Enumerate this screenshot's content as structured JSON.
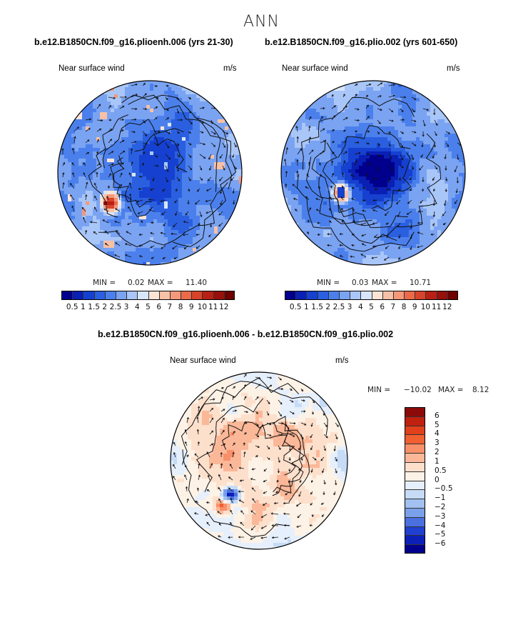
{
  "main_title": "ANN",
  "panels": [
    {
      "title": "b.e12.B1850CN.f09_g16.plioenh.006 (yrs 21-30)",
      "variable": "Near surface wind",
      "units": "m/s",
      "min_label": "MIN =",
      "min_value": "0.02",
      "max_label": "MAX =",
      "max_value": "11.40"
    },
    {
      "title": "b.e12.B1850CN.f09_g16.plio.002 (yrs 601-650)",
      "variable": "Near surface wind",
      "units": "m/s",
      "min_label": "MIN =",
      "min_value": "0.03",
      "max_label": "MAX =",
      "max_value": "10.71"
    }
  ],
  "diff_panel": {
    "title": "b.e12.B1850CN.f09_g16.plioenh.006 - b.e12.B1850CN.f09_g16.plio.002",
    "variable": "Near surface wind",
    "units": "m/s",
    "min_label": "MIN =",
    "min_value": "−10.02",
    "max_label": "MAX =",
    "max_value": "8.12"
  },
  "chart_data": [
    {
      "type": "heatmap",
      "projection": "north polar stereographic",
      "title": "b.e12.B1850CN.f09_g16.plioenh.006 (yrs 21-30)",
      "variable": "Near surface wind",
      "units": "m/s",
      "min": 0.02,
      "max": 11.4,
      "colorbar_levels": [
        "0.5",
        "1",
        "1.5",
        "2",
        "2.5",
        "3",
        "4",
        "5",
        "6",
        "7",
        "8",
        "9",
        "10",
        "11",
        "12"
      ],
      "colorbar_colors": [
        "#00008c",
        "#0a1fb4",
        "#1640d0",
        "#2a5fe0",
        "#4b80ec",
        "#7aa3f2",
        "#a9c6f8",
        "#d8e6fb",
        "#fbe4d6",
        "#f8c0a6",
        "#f4987a",
        "#ec6a4a",
        "#d8442b",
        "#b82015",
        "#96100c",
        "#6e0000"
      ]
    },
    {
      "type": "heatmap",
      "projection": "north polar stereographic",
      "title": "b.e12.B1850CN.f09_g16.plio.002 (yrs 601-650)",
      "variable": "Near surface wind",
      "units": "m/s",
      "min": 0.03,
      "max": 10.71,
      "colorbar_levels": [
        "0.5",
        "1",
        "1.5",
        "2",
        "2.5",
        "3",
        "4",
        "5",
        "6",
        "7",
        "8",
        "9",
        "10",
        "11",
        "12"
      ],
      "colorbar_colors": [
        "#00008c",
        "#0a1fb4",
        "#1640d0",
        "#2a5fe0",
        "#4b80ec",
        "#7aa3f2",
        "#a9c6f8",
        "#d8e6fb",
        "#fbe4d6",
        "#f8c0a6",
        "#f4987a",
        "#ec6a4a",
        "#d8442b",
        "#b82015",
        "#96100c",
        "#6e0000"
      ]
    },
    {
      "type": "heatmap",
      "projection": "north polar stereographic",
      "title": "b.e12.B1850CN.f09_g16.plioenh.006 - b.e12.B1850CN.f09_g16.plio.002",
      "variable": "Near surface wind",
      "units": "m/s",
      "min": -10.02,
      "max": 8.12,
      "colorbar_levels": [
        "6",
        "5",
        "4",
        "3",
        "2",
        "1",
        "0.5",
        "0",
        "−0.5",
        "−1",
        "−2",
        "−3",
        "−4",
        "−5",
        "−6"
      ],
      "colorbar_colors": [
        "#8c0a0a",
        "#c0200e",
        "#e0401a",
        "#f06030",
        "#f8906a",
        "#fbb898",
        "#fde0cc",
        "#fdf2e6",
        "#e6effc",
        "#c6dbf6",
        "#a2c0f0",
        "#7aa0ea",
        "#4a70e0",
        "#2040d0",
        "#0c20b8",
        "#00008c"
      ]
    }
  ]
}
